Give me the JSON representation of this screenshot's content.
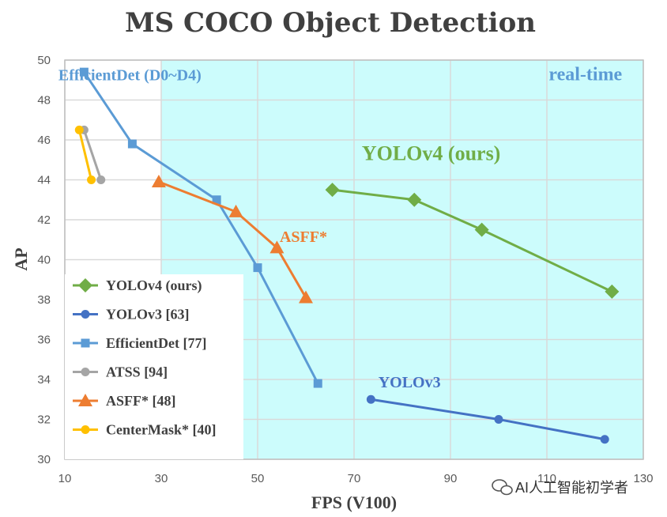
{
  "chart_data": {
    "type": "line",
    "title": "MS COCO Object Detection",
    "xlabel": "FPS (V100)",
    "ylabel": "AP",
    "xlim": [
      10,
      130
    ],
    "ylim": [
      30,
      50
    ],
    "xticks": [
      10,
      30,
      50,
      70,
      90,
      110,
      130
    ],
    "yticks": [
      30,
      32,
      34,
      36,
      38,
      40,
      42,
      44,
      46,
      48,
      50
    ],
    "grid": true,
    "legend_position": "bottom-left",
    "realtime_region": {
      "x_from": 30,
      "x_to": 130,
      "label": "real-time",
      "color": "#ccfcfc"
    },
    "series": [
      {
        "name": "YOLOv4 (ours)",
        "color": "#70ad47",
        "marker": "diamond",
        "points": [
          [
            65.5,
            43.5
          ],
          [
            82.5,
            43.0
          ],
          [
            96.5,
            41.5
          ],
          [
            123.5,
            38.4
          ]
        ]
      },
      {
        "name": "YOLOv3 [63]",
        "color": "#4472c4",
        "marker": "circle",
        "points": [
          [
            73.5,
            33.0
          ],
          [
            100,
            32.0
          ],
          [
            122,
            31.0
          ]
        ]
      },
      {
        "name": "EfficientDet [77]",
        "color": "#5b9bd5",
        "marker": "square",
        "points": [
          [
            14,
            49.4
          ],
          [
            24,
            45.8
          ],
          [
            41.5,
            43.0
          ],
          [
            50,
            39.6
          ],
          [
            62.5,
            33.8
          ]
        ]
      },
      {
        "name": "ATSS [94]",
        "color": "#a5a5a5",
        "marker": "circle",
        "points": [
          [
            14,
            46.5
          ],
          [
            17.5,
            44.0
          ]
        ]
      },
      {
        "name": "ASFF* [48]",
        "color": "#ed7d31",
        "marker": "triangle",
        "points": [
          [
            29.5,
            43.9
          ],
          [
            45.5,
            42.4
          ],
          [
            54,
            40.6
          ],
          [
            60,
            38.1
          ]
        ]
      },
      {
        "name": "CenterMask* [40]",
        "color": "#ffc000",
        "marker": "circle",
        "points": [
          [
            13,
            46.5
          ],
          [
            15.5,
            44.0
          ]
        ]
      }
    ],
    "annotations": [
      {
        "text": "EfficientDet (D0~D4)",
        "color": "#5b9bd5",
        "x": 23.5,
        "y": 49.0,
        "size": 20
      },
      {
        "text": "real-time",
        "color": "#5b9bd5",
        "x": 118,
        "y": 49.0,
        "size": 24
      },
      {
        "text": "YOLOv4 (ours)",
        "color": "#70ad47",
        "x": 86,
        "y": 45.0,
        "size": 26
      },
      {
        "text": "ASFF*",
        "color": "#ed7d31",
        "x": 59.5,
        "y": 40.9,
        "size": 20
      },
      {
        "text": "YOLOv3",
        "color": "#4472c4",
        "x": 81.5,
        "y": 33.6,
        "size": 20
      }
    ]
  },
  "watermark": {
    "text": "AI人工智能初学者"
  }
}
